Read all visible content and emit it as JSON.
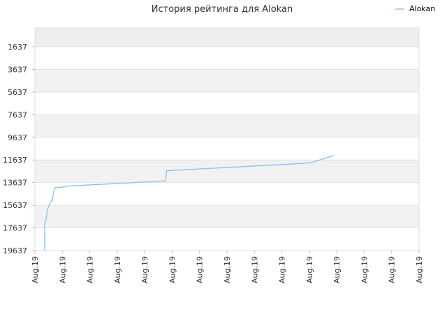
{
  "chart_data": {
    "type": "line",
    "title": "История рейтинга для Alokan",
    "y_reversed": true,
    "ylim": [
      1637,
      19637
    ],
    "y_band_top": -30,
    "y_ticks": [
      "1637",
      "3637",
      "5637",
      "7637",
      "9637",
      "11637",
      "13637",
      "15637",
      "17637",
      "19637"
    ],
    "x_ticks": [
      "Aug.19",
      "Aug.19",
      "Aug.19",
      "Aug.19",
      "Aug.19",
      "Aug.19",
      "Aug.19",
      "Aug.19",
      "Aug.19",
      "Aug.19",
      "Aug.19",
      "Aug.19",
      "Aug.19",
      "Aug.19",
      "Aug.19"
    ],
    "grid": true,
    "legend_position": "top-right",
    "series": [
      {
        "name": "Alokan",
        "color": "#8ec3ef",
        "points": [
          [
            0.0,
            19637
          ],
          [
            0.0,
            18400
          ],
          [
            0.0,
            17300
          ],
          [
            0.1,
            17000
          ],
          [
            0.2,
            16400
          ],
          [
            0.3,
            15900
          ],
          [
            0.4,
            15700
          ],
          [
            0.5,
            15400
          ],
          [
            0.7,
            15200
          ],
          [
            0.8,
            14700
          ],
          [
            0.9,
            14200
          ],
          [
            1.0,
            14050
          ],
          [
            1.5,
            14050
          ],
          [
            2.0,
            13950
          ],
          [
            3.0,
            13900
          ],
          [
            4.0,
            13850
          ],
          [
            5.0,
            13800
          ],
          [
            6.0,
            13750
          ],
          [
            7.0,
            13700
          ],
          [
            8.0,
            13650
          ],
          [
            9.0,
            13600
          ],
          [
            10.0,
            13550
          ],
          [
            11.0,
            13500
          ],
          [
            11.3,
            13480
          ],
          [
            11.4,
            12600
          ],
          [
            12.0,
            12550
          ],
          [
            13.0,
            12500
          ],
          [
            14.0,
            12450
          ],
          [
            15.0,
            12400
          ],
          [
            16.0,
            12350
          ],
          [
            17.0,
            12300
          ],
          [
            18.0,
            12250
          ],
          [
            19.0,
            12200
          ],
          [
            20.0,
            12150
          ],
          [
            21.0,
            12100
          ],
          [
            22.0,
            12050
          ],
          [
            23.0,
            12000
          ],
          [
            24.0,
            11950
          ],
          [
            25.0,
            11850
          ],
          [
            26.0,
            11550
          ],
          [
            27.0,
            11250
          ]
        ]
      }
    ]
  }
}
